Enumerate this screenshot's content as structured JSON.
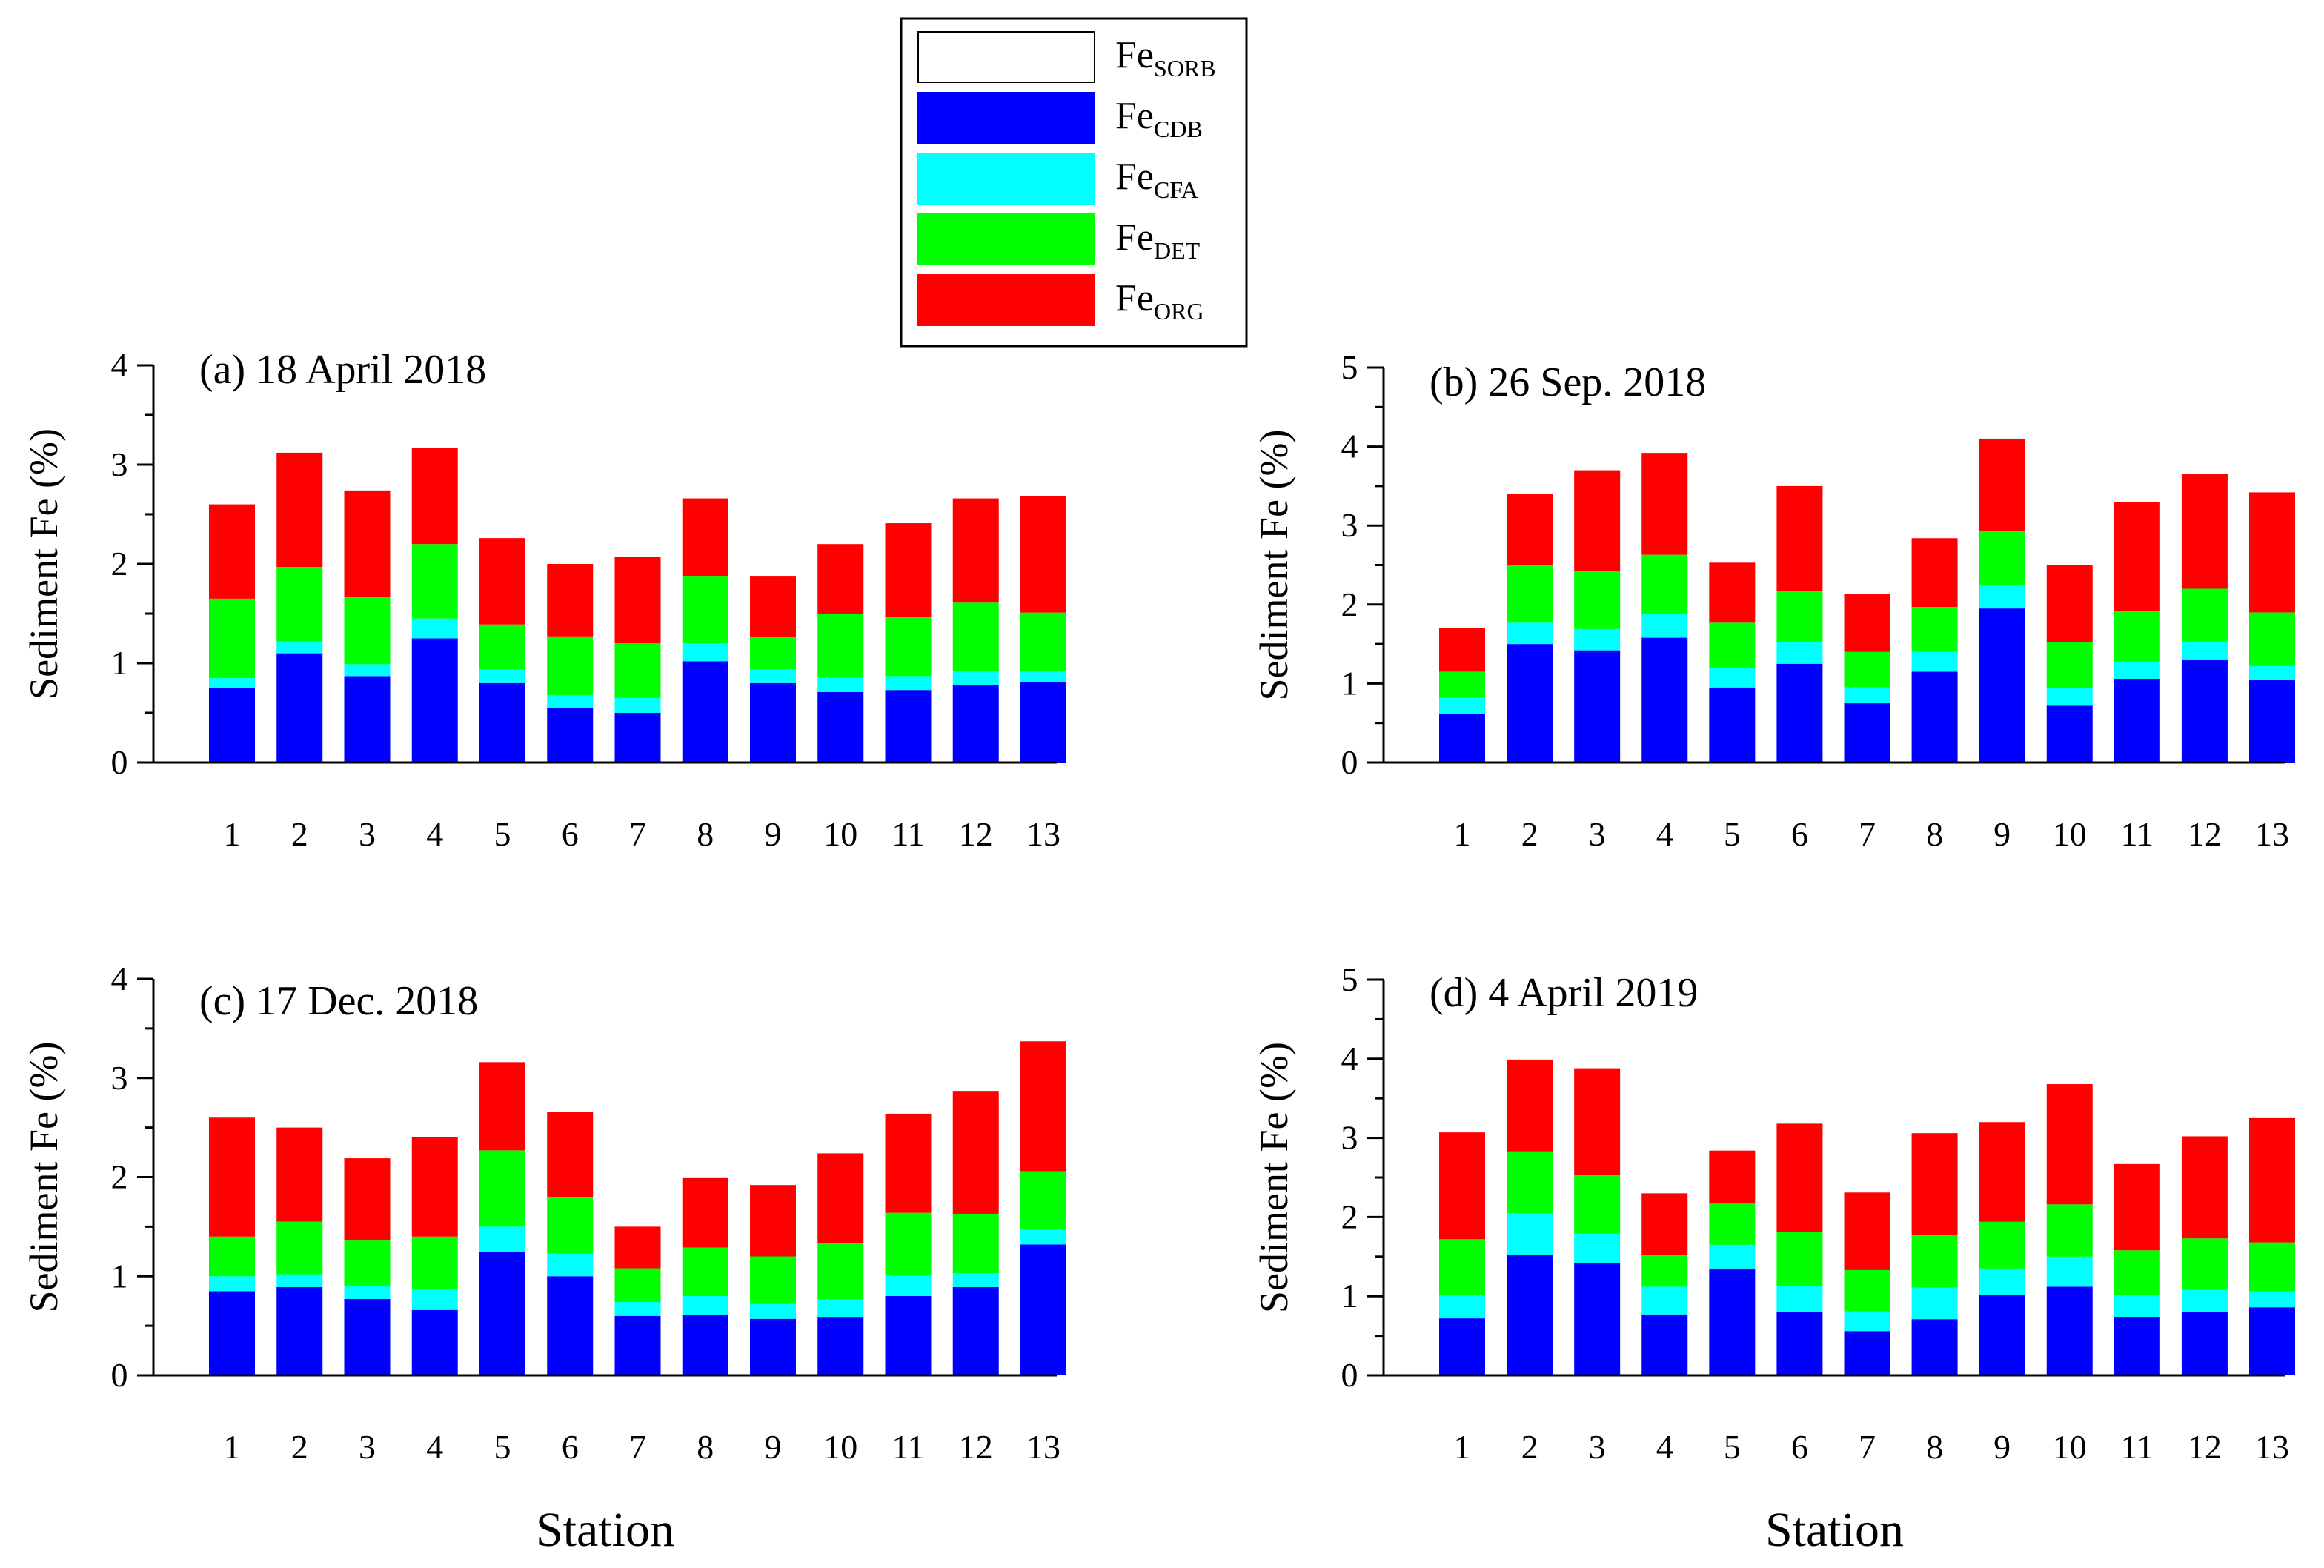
{
  "legend": {
    "items": [
      {
        "name": "Fe",
        "sub": "SORB",
        "color": "#ffffff"
      },
      {
        "name": "Fe",
        "sub": "CDB",
        "color": "#0000ff"
      },
      {
        "name": "Fe",
        "sub": "CFA",
        "color": "#00ffff"
      },
      {
        "name": "Fe",
        "sub": "DET",
        "color": "#00ff00"
      },
      {
        "name": "Fe",
        "sub": "ORG",
        "color": "#ff0000"
      }
    ]
  },
  "chart_data": [
    {
      "type": "bar",
      "stacked": true,
      "title": "(a) 18 April 2018",
      "xlabel": "Station",
      "ylabel": "Sediment Fe (%)",
      "ylim": [
        0,
        4
      ],
      "yticks": [
        0,
        1,
        2,
        3,
        4
      ],
      "categories": [
        "1",
        "2",
        "3",
        "4",
        "5",
        "6",
        "7",
        "8",
        "9",
        "10",
        "11",
        "12",
        "13"
      ],
      "series": [
        {
          "name": "FeSORB",
          "values": [
            0,
            0,
            0,
            0,
            0,
            0,
            0,
            0,
            0,
            0,
            0,
            0,
            0
          ]
        },
        {
          "name": "FeCDB",
          "values": [
            0.75,
            1.1,
            0.87,
            1.25,
            0.8,
            0.55,
            0.5,
            1.02,
            0.8,
            0.71,
            0.73,
            0.78,
            0.81
          ]
        },
        {
          "name": "FeCFA",
          "values": [
            0.1,
            0.12,
            0.12,
            0.2,
            0.14,
            0.13,
            0.15,
            0.18,
            0.14,
            0.15,
            0.14,
            0.14,
            0.11
          ]
        },
        {
          "name": "FeDET",
          "values": [
            0.8,
            0.75,
            0.68,
            0.75,
            0.45,
            0.59,
            0.55,
            0.68,
            0.32,
            0.64,
            0.6,
            0.69,
            0.59
          ]
        },
        {
          "name": "FeORG",
          "values": [
            0.95,
            1.15,
            1.07,
            0.97,
            0.87,
            0.73,
            0.87,
            0.78,
            0.62,
            0.7,
            0.94,
            1.05,
            1.17
          ]
        }
      ]
    },
    {
      "type": "bar",
      "stacked": true,
      "title": "(b) 26 Sep. 2018",
      "xlabel": "Station",
      "ylabel": "Sediment Fe (%)",
      "ylim": [
        0,
        5
      ],
      "yticks": [
        0,
        1,
        2,
        3,
        4,
        5
      ],
      "categories": [
        "1",
        "2",
        "3",
        "4",
        "5",
        "6",
        "7",
        "8",
        "9",
        "10",
        "11",
        "12",
        "13"
      ],
      "series": [
        {
          "name": "FeSORB",
          "values": [
            0,
            0,
            0,
            0,
            0,
            0,
            0,
            0,
            0,
            0,
            0,
            0,
            0
          ]
        },
        {
          "name": "FeCDB",
          "values": [
            0.62,
            1.5,
            1.42,
            1.58,
            0.95,
            1.25,
            0.75,
            1.15,
            1.95,
            0.72,
            1.06,
            1.3,
            1.05
          ]
        },
        {
          "name": "FeCFA",
          "values": [
            0.2,
            0.27,
            0.27,
            0.3,
            0.25,
            0.27,
            0.2,
            0.25,
            0.3,
            0.22,
            0.22,
            0.23,
            0.17
          ]
        },
        {
          "name": "FeDET",
          "values": [
            0.33,
            0.73,
            0.73,
            0.75,
            0.57,
            0.65,
            0.45,
            0.57,
            0.68,
            0.58,
            0.64,
            0.67,
            0.68
          ]
        },
        {
          "name": "FeORG",
          "values": [
            0.55,
            0.9,
            1.28,
            1.29,
            0.76,
            1.33,
            0.73,
            0.87,
            1.17,
            0.98,
            1.38,
            1.45,
            1.52
          ]
        }
      ]
    },
    {
      "type": "bar",
      "stacked": true,
      "title": "(c) 17 Dec. 2018",
      "xlabel": "Station",
      "ylabel": "Sediment Fe (%)",
      "ylim": [
        0,
        4
      ],
      "yticks": [
        0,
        1,
        2,
        3,
        4
      ],
      "categories": [
        "1",
        "2",
        "3",
        "4",
        "5",
        "6",
        "7",
        "8",
        "9",
        "10",
        "11",
        "12",
        "13"
      ],
      "series": [
        {
          "name": "FeSORB",
          "values": [
            0,
            0,
            0,
            0,
            0,
            0,
            0,
            0,
            0,
            0,
            0,
            0,
            0
          ]
        },
        {
          "name": "FeCDB",
          "values": [
            0.85,
            0.89,
            0.77,
            0.66,
            1.25,
            1.0,
            0.6,
            0.61,
            0.57,
            0.59,
            0.8,
            0.89,
            1.32
          ]
        },
        {
          "name": "FeCFA",
          "values": [
            0.15,
            0.13,
            0.13,
            0.21,
            0.25,
            0.23,
            0.14,
            0.19,
            0.15,
            0.18,
            0.21,
            0.14,
            0.15
          ]
        },
        {
          "name": "FeDET",
          "values": [
            0.4,
            0.53,
            0.46,
            0.53,
            0.77,
            0.57,
            0.34,
            0.49,
            0.48,
            0.56,
            0.63,
            0.6,
            0.59
          ]
        },
        {
          "name": "FeORG",
          "values": [
            1.2,
            0.95,
            0.83,
            1.0,
            0.89,
            0.86,
            0.42,
            0.7,
            0.72,
            0.91,
            1.0,
            1.24,
            1.31
          ]
        }
      ]
    },
    {
      "type": "bar",
      "stacked": true,
      "title": "(d) 4 April 2019",
      "xlabel": "Station",
      "ylabel": "Sediment Fe (%)",
      "ylim": [
        0,
        5
      ],
      "yticks": [
        0,
        1,
        2,
        3,
        4,
        5
      ],
      "categories": [
        "1",
        "2",
        "3",
        "4",
        "5",
        "6",
        "7",
        "8",
        "9",
        "10",
        "11",
        "12",
        "13"
      ],
      "series": [
        {
          "name": "FeSORB",
          "values": [
            0,
            0,
            0,
            0,
            0,
            0,
            0,
            0,
            0,
            0,
            0,
            0,
            0
          ]
        },
        {
          "name": "FeCDB",
          "values": [
            0.72,
            1.52,
            1.42,
            0.77,
            1.35,
            0.8,
            0.56,
            0.71,
            1.02,
            1.12,
            0.74,
            0.8,
            0.86
          ]
        },
        {
          "name": "FeCFA",
          "values": [
            0.3,
            0.53,
            0.37,
            0.35,
            0.3,
            0.33,
            0.25,
            0.4,
            0.33,
            0.38,
            0.27,
            0.28,
            0.2
          ]
        },
        {
          "name": "FeDET",
          "values": [
            0.7,
            0.78,
            0.74,
            0.4,
            0.52,
            0.68,
            0.52,
            0.66,
            0.59,
            0.66,
            0.57,
            0.65,
            0.62
          ]
        },
        {
          "name": "FeORG",
          "values": [
            1.35,
            1.16,
            1.35,
            0.78,
            0.67,
            1.37,
            0.98,
            1.29,
            1.26,
            1.52,
            1.09,
            1.29,
            1.57
          ]
        }
      ]
    }
  ]
}
